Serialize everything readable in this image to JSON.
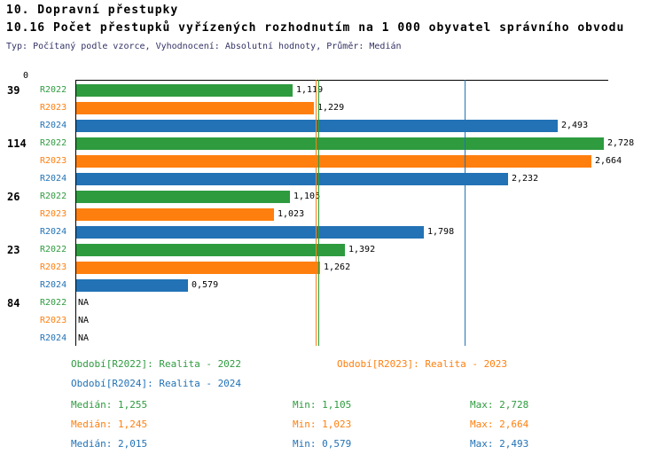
{
  "colors": {
    "green": "#2e9b3f",
    "orange": "#ff7f0e",
    "blue": "#2272b5",
    "axis": "#000000"
  },
  "header": {
    "title": "10. Dopravní přestupky",
    "subtitle": "10.16 Počet přestupků vyřízených rozhodnutím na 1 000 obyvatel správního obvodu",
    "meta": "Typ: Počítaný podle vzorce, Vyhodnocení: Absolutní hodnoty, Průměr: Medián"
  },
  "chart_data": {
    "type": "bar",
    "orientation": "horizontal",
    "x_axis": {
      "zero_label": "0",
      "xlim": [
        0,
        2.75
      ],
      "grid": false
    },
    "legend_position": "bottom",
    "series": [
      {
        "label": "R2022",
        "color": "green"
      },
      {
        "label": "R2023",
        "color": "orange"
      },
      {
        "label": "R2024",
        "color": "blue"
      }
    ],
    "groups": [
      {
        "label": "39",
        "values": [
          1.119,
          1.229,
          2.493
        ],
        "display": [
          "1,119",
          "1,229",
          "2,493"
        ]
      },
      {
        "label": "114",
        "values": [
          2.728,
          2.664,
          2.232
        ],
        "display": [
          "2,728",
          "2,664",
          "2,232"
        ]
      },
      {
        "label": "26",
        "values": [
          1.105,
          1.023,
          1.798
        ],
        "display": [
          "1,105",
          "1,023",
          "1,798"
        ]
      },
      {
        "label": "23",
        "values": [
          1.392,
          1.262,
          0.579
        ],
        "display": [
          "1,392",
          "1,262",
          "0,579"
        ]
      },
      {
        "label": "84",
        "values": [
          null,
          null,
          null
        ],
        "display": [
          "NA",
          "NA",
          "NA"
        ]
      }
    ],
    "median_lines": [
      {
        "value": 1.255,
        "color": "green"
      },
      {
        "value": 1.245,
        "color": "orange"
      },
      {
        "value": 2.015,
        "color": "blue"
      }
    ]
  },
  "legend": {
    "items": [
      {
        "label": "Období[R2022]: Realita - 2022",
        "color": "green"
      },
      {
        "label": "Období[R2023]: Realita - 2023",
        "color": "orange"
      },
      {
        "label": "Období[R2024]: Realita - 2024",
        "color": "blue"
      }
    ]
  },
  "stats": {
    "rows": [
      {
        "color": "green",
        "median": "Medián: 1,255",
        "min": "Min: 1,105",
        "max": "Max: 2,728"
      },
      {
        "color": "orange",
        "median": "Medián: 1,245",
        "min": "Min: 1,023",
        "max": "Max: 2,664"
      },
      {
        "color": "blue",
        "median": "Medián: 2,015",
        "min": "Min: 0,579",
        "max": "Max: 2,493"
      }
    ]
  }
}
